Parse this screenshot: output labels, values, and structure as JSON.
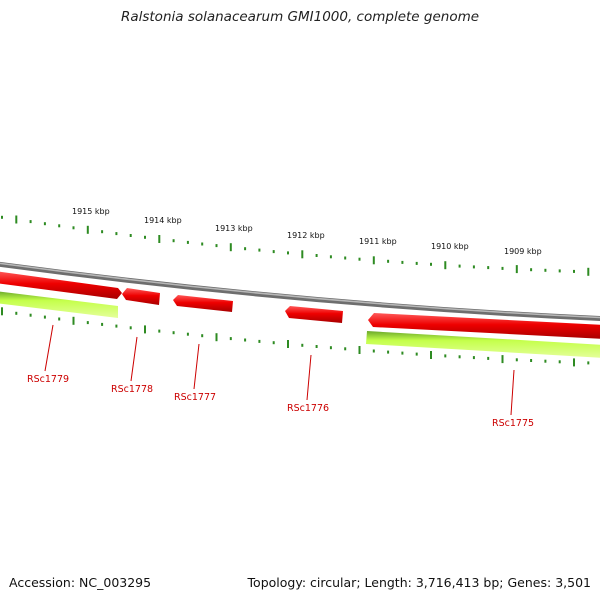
{
  "title": "Ralstonia solanacearum GMI1000, complete genome",
  "footer": {
    "accession_label": "Accession:",
    "accession": "NC_003295",
    "topology_label": "Topology:",
    "topology": "circular",
    "length_label": "Length:",
    "length": "3,716,413 bp",
    "genes_label": "Genes:",
    "genes": "3,501"
  },
  "colors": {
    "backbone": "#8a8a8a",
    "forward_gene": "#ee0000",
    "reverse_gene": "#aaff22",
    "tick": "#2e8b22",
    "gene_label": "#cc0000"
  },
  "kbp_labels": [
    "1915 kbp",
    "1914 kbp",
    "1913 kbp",
    "1912 kbp",
    "1911 kbp",
    "1910 kbp",
    "1909 kbp"
  ],
  "genes": [
    {
      "label": "RSc1779",
      "strand": "forward"
    },
    {
      "label": "RSc1778",
      "strand": "forward"
    },
    {
      "label": "RSc1777",
      "strand": "forward"
    },
    {
      "label": "RSc1776",
      "strand": "forward"
    },
    {
      "label": "RSc1775",
      "strand": "forward"
    }
  ],
  "reverse_genes_count": 2
}
